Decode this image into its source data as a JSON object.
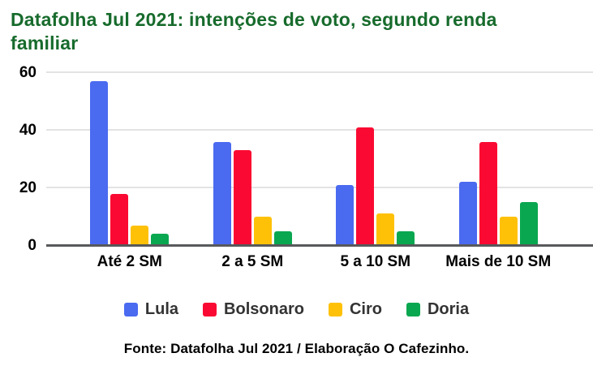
{
  "title": "Datafolha Jul 2021: intenções de voto, segundo renda familiar",
  "source_note": "Fonte: Datafolha Jul 2021 / Elaboração O Cafezinho.",
  "colors": {
    "title_text": "#176B2C",
    "axis_line": "#58595B",
    "gridline": "#E3E3E3",
    "tick_text": "#000000",
    "legend_text": "#333333"
  },
  "chart_data": {
    "type": "bar",
    "title": "Datafolha Jul 2021: intenções de voto, segundo renda familiar",
    "categories": [
      "Até 2 SM",
      "2 a 5 SM",
      "5 a 10 SM",
      "Mais de 10 SM"
    ],
    "series": [
      {
        "name": "Lula",
        "color": "#4A6AF0",
        "values": [
          57,
          36,
          21,
          22
        ]
      },
      {
        "name": "Bolsonaro",
        "color": "#FA0A32",
        "values": [
          18,
          33,
          41,
          36
        ]
      },
      {
        "name": "Ciro",
        "color": "#FFC107",
        "values": [
          7,
          10,
          11,
          10
        ]
      },
      {
        "name": "Doria",
        "color": "#09A750",
        "values": [
          4,
          5,
          5,
          15
        ]
      }
    ],
    "xlabel": "",
    "ylabel": "",
    "ylim": [
      0,
      60
    ],
    "yticks": [
      0,
      20,
      40,
      60
    ],
    "grid": true,
    "legend_position": "bottom"
  }
}
